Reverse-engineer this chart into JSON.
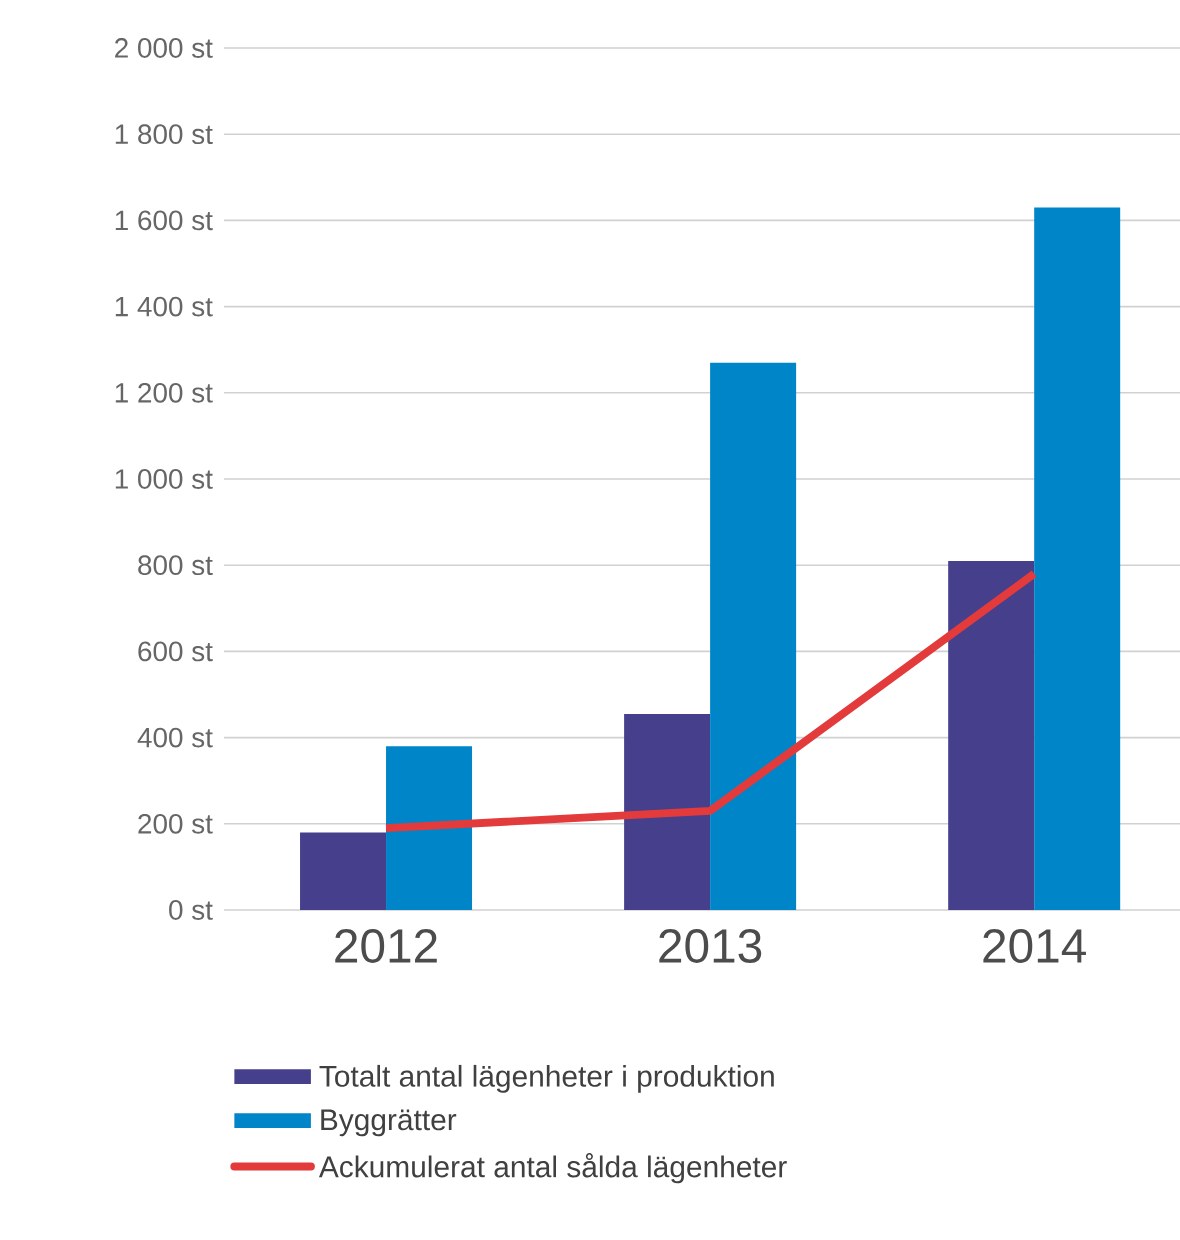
{
  "chart_data": {
    "type": "bar",
    "categories": [
      "2012",
      "2013",
      "2014"
    ],
    "series": [
      {
        "name": "Totalt antal lägenheter i produktion",
        "color": "#453f8c",
        "values": [
          180,
          455,
          810
        ]
      },
      {
        "name": "Byggrätter",
        "color": "#0085c8",
        "values": [
          380,
          1270,
          1630
        ]
      },
      {
        "name": "Ackumulerat antal sålda lägenheter",
        "color": "#e33b3b",
        "type": "line",
        "values": [
          190,
          230,
          780
        ]
      }
    ],
    "ylim": [
      0,
      2000
    ],
    "yticks": [
      {
        "value": 0,
        "label": "0 st"
      },
      {
        "value": 200,
        "label": "200 st"
      },
      {
        "value": 400,
        "label": "400 st"
      },
      {
        "value": 600,
        "label": "600 st"
      },
      {
        "value": 800,
        "label": "800 st"
      },
      {
        "value": 1000,
        "label": "1 000 st"
      },
      {
        "value": 1200,
        "label": "1 200 st"
      },
      {
        "value": 1400,
        "label": "1 400 st"
      },
      {
        "value": 1600,
        "label": "1 600 st"
      },
      {
        "value": 1800,
        "label": "1 800 st"
      },
      {
        "value": 2000,
        "label": "2 000 st"
      }
    ],
    "grid": "y",
    "legend": "bottom"
  }
}
